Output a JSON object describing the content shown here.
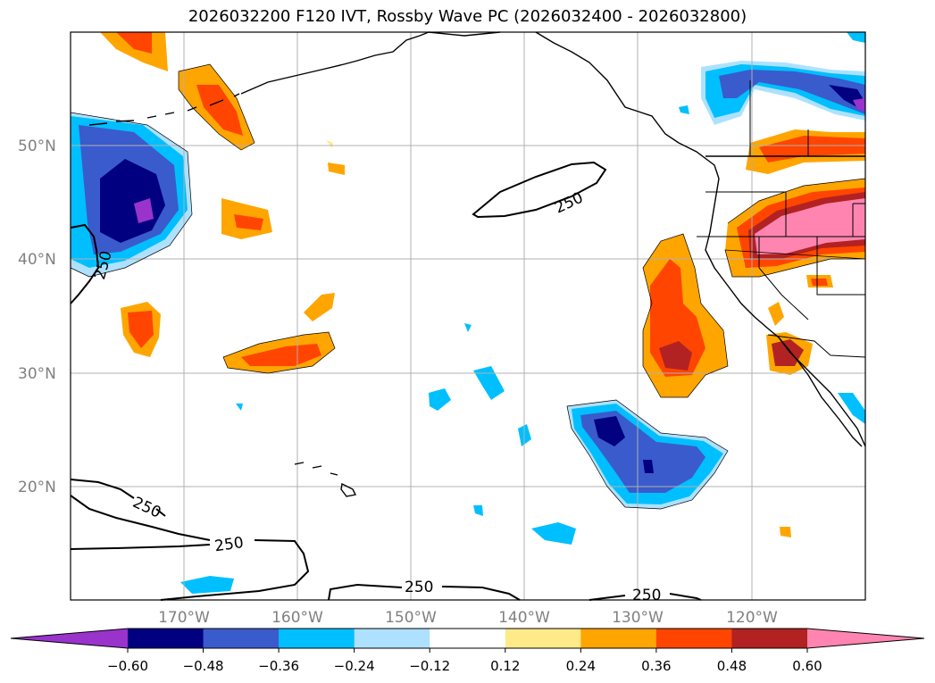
{
  "title": "2026032200 F120 IVT, Rossby Wave PC (2026032400 - 2026032800)",
  "map": {
    "lat_labels": [
      "50°N",
      "40°N",
      "30°N",
      "20°N"
    ],
    "lon_labels": [
      "170°W",
      "160°W",
      "150°W",
      "140°W",
      "130°W",
      "120°W"
    ],
    "contour_value_label": "250"
  },
  "colorbar": {
    "ticks": [
      "−0.60",
      "−0.48",
      "−0.36",
      "−0.24",
      "−0.12",
      "0.12",
      "0.24",
      "0.36",
      "0.48",
      "0.60"
    ],
    "colors": [
      "#9933cc",
      "#000080",
      "#3a5bcc",
      "#00bfff",
      "#aee1ff",
      "#ffffff",
      "#ffea8a",
      "#ffa500",
      "#ff4500",
      "#b22222",
      "#ff85b0"
    ]
  }
}
